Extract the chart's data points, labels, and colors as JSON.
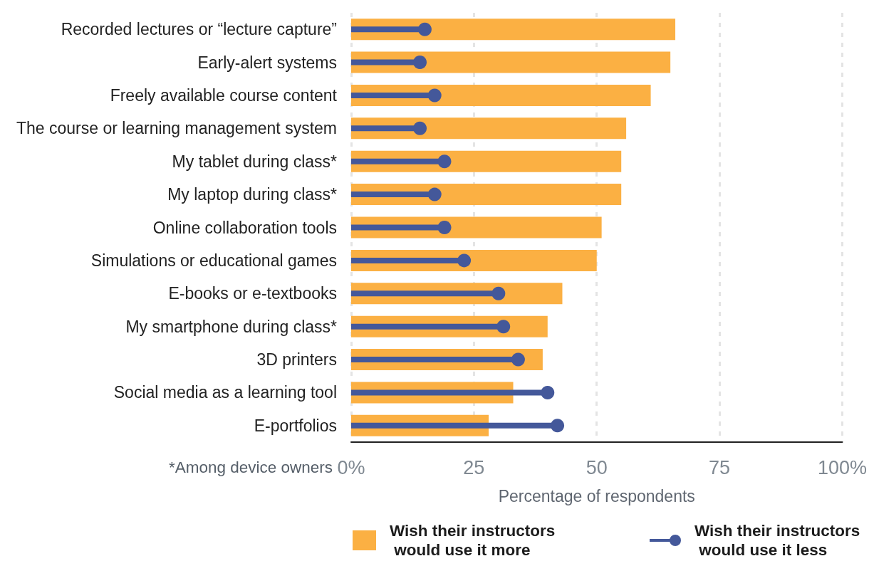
{
  "chart_data": {
    "type": "bar",
    "orientation": "horizontal",
    "categories": [
      "Recorded lectures or “lecture capture”",
      "Early-alert systems",
      "Freely available course content",
      "The course or learning management system",
      "My tablet during class*",
      "My laptop during class*",
      "Online collaboration tools",
      "Simulations or educational games",
      "E-books or e-textbooks",
      "My smartphone during class*",
      "3D printers",
      "Social media as a learning tool",
      "E-portfolios"
    ],
    "series": [
      {
        "name": "Wish their instructors would use it more",
        "color": "#fbb043",
        "values": [
          66,
          65,
          61,
          56,
          55,
          55,
          51,
          50,
          43,
          40,
          39,
          33,
          28
        ]
      },
      {
        "name": "Wish their instructors would use it less",
        "type": "lollipop",
        "color": "#44589a",
        "values": [
          15,
          14,
          17,
          14,
          19,
          17,
          19,
          23,
          30,
          31,
          34,
          40,
          42
        ]
      }
    ],
    "marker": "circle",
    "xlabel": "Percentage of respondents",
    "xlim": [
      0,
      100
    ],
    "xticks": [
      {
        "value": 0,
        "label": "0%"
      },
      25,
      50,
      75,
      {
        "value": 100,
        "label": "100%"
      }
    ],
    "grid": "x",
    "legend": "bottom",
    "annotations": [
      "*Among device owners"
    ]
  }
}
